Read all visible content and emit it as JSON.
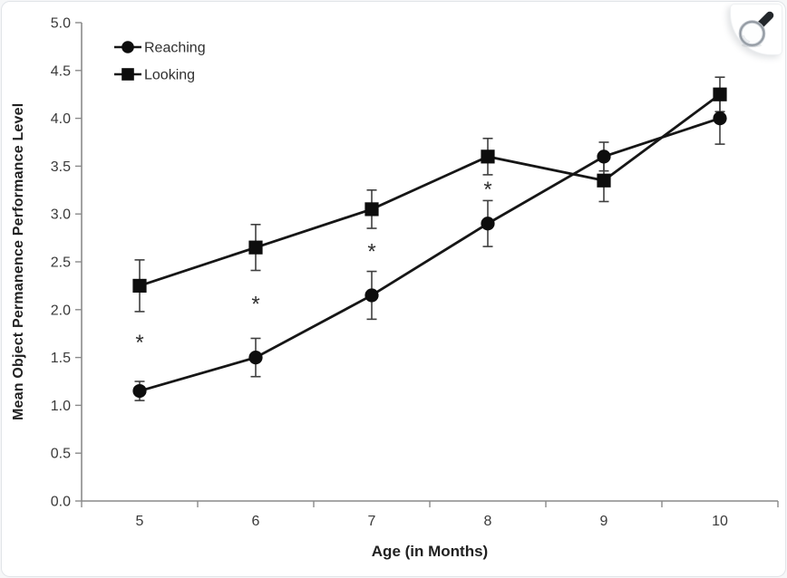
{
  "card": {
    "background": "#ffffff",
    "border_color": "#e1e4e8"
  },
  "toolbar": {
    "zoom_button": {
      "icon": "magnifier-icon",
      "tooltip": ""
    }
  },
  "chart_data": {
    "type": "line",
    "title": "",
    "xlabel": "Age (in Months)",
    "ylabel": "Mean Object Permanence Performance Level",
    "x_categories": [
      "5",
      "6",
      "7",
      "8",
      "9",
      "10"
    ],
    "y_tick_labels": [
      "0.0",
      "0.5",
      "1.0",
      "1.5",
      "2.0",
      "2.5",
      "3.0",
      "3.5",
      "4.0",
      "4.5",
      "5.0"
    ],
    "ylim": [
      0,
      5
    ],
    "y_tick_step": 0.5,
    "grid": false,
    "legend_position": "top-left-inside",
    "series": [
      {
        "name": "Reaching",
        "marker": "circle",
        "values": [
          1.15,
          1.5,
          2.15,
          2.9,
          3.6,
          4.0
        ],
        "errors": [
          0.1,
          0.2,
          0.25,
          0.24,
          0.15,
          0.27
        ]
      },
      {
        "name": "Looking",
        "marker": "square",
        "values": [
          2.25,
          2.65,
          3.05,
          3.6,
          3.35,
          4.25
        ],
        "errors": [
          0.27,
          0.24,
          0.2,
          0.19,
          0.22,
          0.18
        ]
      }
    ],
    "annotations": [
      {
        "symbol": "*",
        "x_index": 0,
        "y": 1.65
      },
      {
        "symbol": "*",
        "x_index": 1,
        "y": 2.05
      },
      {
        "symbol": "*",
        "x_index": 2,
        "y": 2.6
      },
      {
        "symbol": "*",
        "x_index": 3,
        "y": 3.25
      }
    ],
    "colors": {
      "line": "#161616",
      "marker": "#0d0d0d",
      "error_bar": "#3f3f3f",
      "axis": "#8a8a8a",
      "tick_label": "#3a3a3a",
      "legend_text": "#303030",
      "annotation": "#2f2f2f"
    }
  }
}
